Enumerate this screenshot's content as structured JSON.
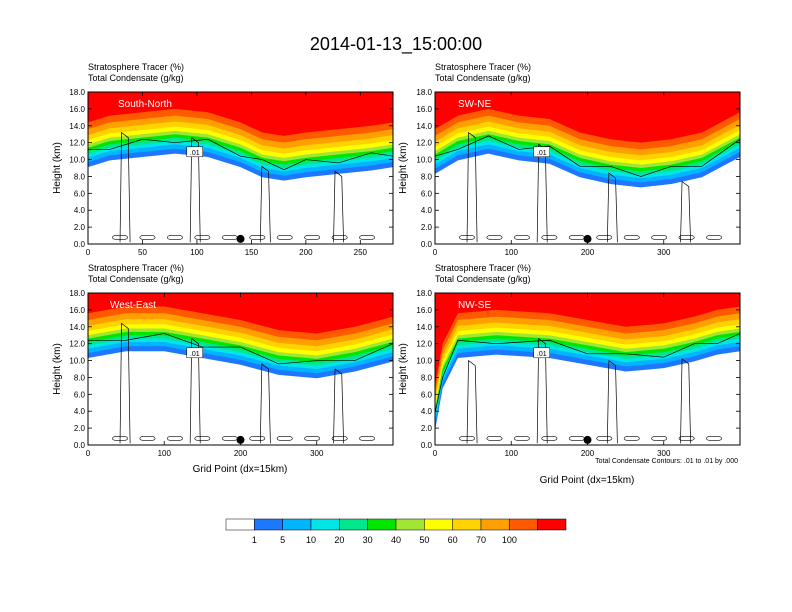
{
  "title": "2014-01-13_15:00:00",
  "panel_header": {
    "line1": "Stratosphere Tracer   (%)",
    "line2": "Total Condensate   (g/kg)"
  },
  "ylabel": "Height (km)",
  "xlabel": "Grid Point (dx=15km)",
  "contour_note": "Total Condensate Contours: .01 to .01 by .000",
  "colors": {
    "bins": [
      "#ffffff",
      "#1e78ff",
      "#00b4ff",
      "#00e6e6",
      "#00e68c",
      "#00e600",
      "#a0e632",
      "#ffff00",
      "#ffd200",
      "#ffa000",
      "#ff5a00",
      "#ff0000"
    ]
  },
  "chart_data": [
    {
      "type": "heatmap",
      "name": "South-North",
      "xlim": [
        0,
        280
      ],
      "xticks": [
        0,
        50,
        100,
        150,
        200,
        250
      ],
      "ylim": [
        0,
        18
      ],
      "yticks": [
        "0.0",
        "2.0",
        "4.0",
        "6.0",
        "8.0",
        "10.0",
        "12.0",
        "14.0",
        "16.0",
        "18.0"
      ],
      "tropopause_km": [
        [
          0,
          14.4
        ],
        [
          20,
          15.2
        ],
        [
          50,
          15.6
        ],
        [
          80,
          16.0
        ],
        [
          110,
          15.6
        ],
        [
          140,
          14.4
        ],
        [
          160,
          13.2
        ],
        [
          180,
          12.8
        ],
        [
          200,
          13.2
        ],
        [
          230,
          13.6
        ],
        [
          260,
          14.0
        ],
        [
          280,
          14.4
        ]
      ],
      "contour_label": ".01",
      "station_x": 140
    },
    {
      "type": "heatmap",
      "name": "SW-NE",
      "xlim": [
        0,
        400
      ],
      "xticks": [
        0,
        100,
        200,
        300
      ],
      "ylim": [
        0,
        18
      ],
      "yticks": [
        "0.0",
        "2.0",
        "4.0",
        "6.0",
        "8.0",
        "10.0",
        "12.0",
        "14.0",
        "16.0",
        "18.0"
      ],
      "tropopause_km": [
        [
          0,
          13.6
        ],
        [
          30,
          15.2
        ],
        [
          70,
          16.0
        ],
        [
          110,
          15.2
        ],
        [
          150,
          14.8
        ],
        [
          190,
          13.2
        ],
        [
          230,
          12.4
        ],
        [
          270,
          12.0
        ],
        [
          310,
          12.4
        ],
        [
          350,
          13.2
        ],
        [
          400,
          15.6
        ]
      ],
      "contour_label": ".01",
      "station_x": 200
    },
    {
      "type": "heatmap",
      "name": "West-East",
      "xlim": [
        0,
        400
      ],
      "xticks": [
        0,
        100,
        200,
        300
      ],
      "ylim": [
        0,
        18
      ],
      "yticks": [
        "0.0",
        "2.0",
        "4.0",
        "6.0",
        "8.0",
        "10.0",
        "12.0",
        "14.0",
        "16.0",
        "18.0"
      ],
      "tropopause_km": [
        [
          0,
          15.6
        ],
        [
          50,
          16.4
        ],
        [
          100,
          16.4
        ],
        [
          150,
          15.6
        ],
        [
          200,
          14.8
        ],
        [
          250,
          13.6
        ],
        [
          300,
          13.2
        ],
        [
          350,
          14.0
        ],
        [
          400,
          15.2
        ]
      ],
      "contour_label": ".01",
      "station_x": 200
    },
    {
      "type": "heatmap",
      "name": "NW-SE",
      "xlim": [
        0,
        400
      ],
      "xticks": [
        0,
        100,
        200,
        300
      ],
      "ylim": [
        0,
        18
      ],
      "yticks": [
        "0.0",
        "2.0",
        "4.0",
        "6.0",
        "8.0",
        "10.0",
        "12.0",
        "14.0",
        "16.0",
        "18.0"
      ],
      "tropopause_km": [
        [
          0,
          7.0
        ],
        [
          10,
          12.0
        ],
        [
          30,
          15.6
        ],
        [
          80,
          16.0
        ],
        [
          150,
          15.6
        ],
        [
          200,
          14.8
        ],
        [
          250,
          14.0
        ],
        [
          300,
          14.4
        ],
        [
          340,
          15.2
        ],
        [
          370,
          16.0
        ],
        [
          400,
          16.4
        ]
      ],
      "contour_label": ".01",
      "station_x": 200
    }
  ],
  "colorbar": {
    "labels": [
      "1",
      "5",
      "10",
      "20",
      "30",
      "40",
      "50",
      "60",
      "70",
      "100"
    ]
  }
}
